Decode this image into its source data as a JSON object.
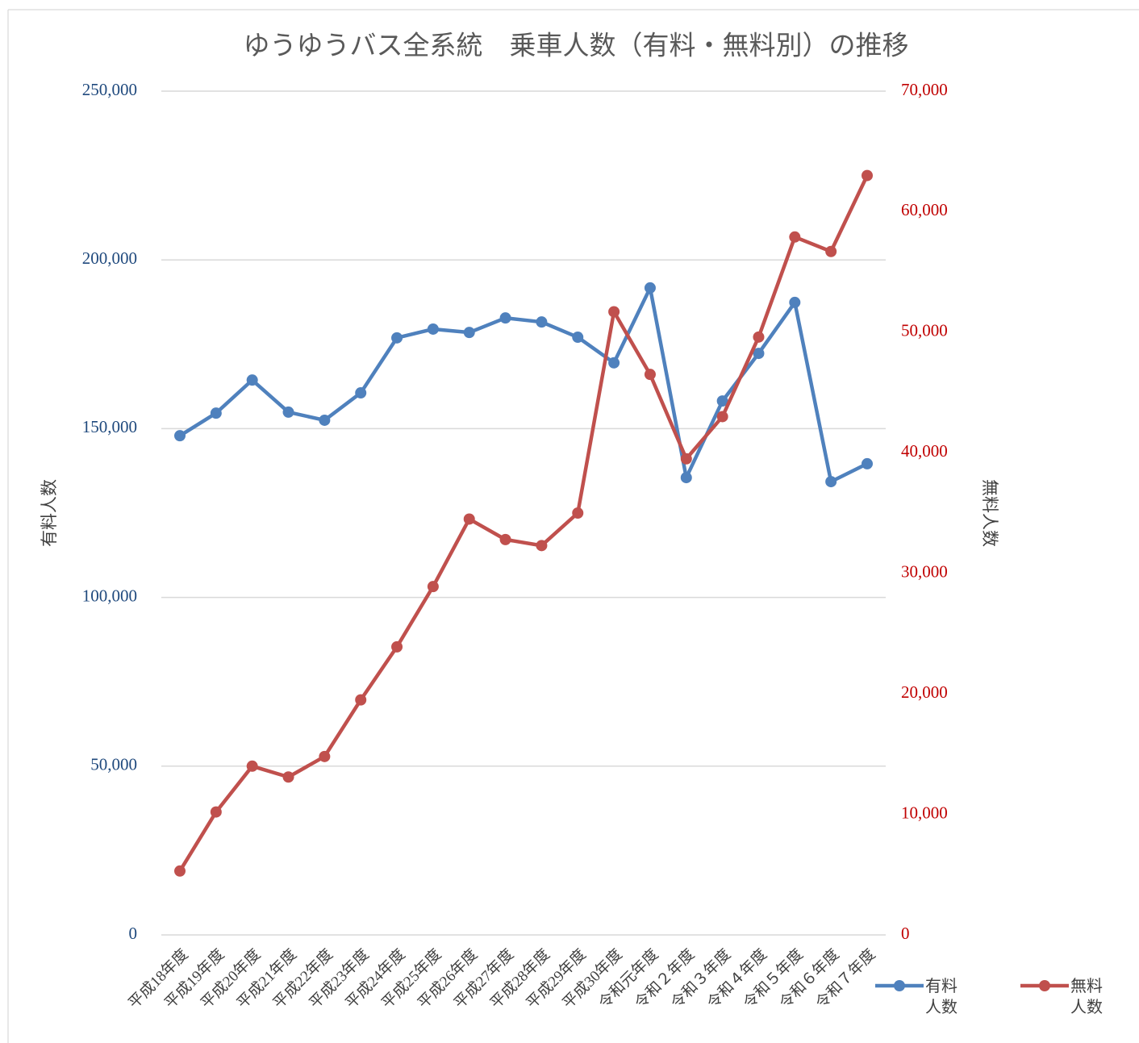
{
  "chart_data": {
    "type": "line",
    "title": "ゆうゆうバス全系統　乗車人数（有料・無料別）の推移",
    "categories": [
      "平成18年度",
      "平成19年度",
      "平成20年度",
      "平成21年度",
      "平成22年度",
      "平成23年度",
      "平成24年度",
      "平成25年度",
      "平成26年度",
      "平成27年度",
      "平成28年度",
      "平成29年度",
      "平成30年度",
      "令和元年度",
      "令和２年度",
      "令和３年度",
      "令和４年度",
      "令和５年度",
      "令和６年度",
      "令和７年度"
    ],
    "series": [
      {
        "name": "有料人数",
        "color": "#4f81bd",
        "axis": "y",
        "values": [
          147900,
          154600,
          164400,
          154900,
          152500,
          160600,
          176900,
          179500,
          178500,
          182800,
          181600,
          177100,
          169500,
          191700,
          135500,
          158200,
          172300,
          187400,
          134300,
          139600
        ]
      },
      {
        "name": "無料人数",
        "color": "#c0504d",
        "axis": "y2",
        "values": [
          5300,
          10200,
          14000,
          13100,
          14800,
          19500,
          23900,
          28900,
          34500,
          32800,
          32300,
          35000,
          51700,
          46500,
          39500,
          43000,
          49600,
          57900,
          56700,
          63000
        ]
      }
    ],
    "ylabel": "有料人数",
    "y2label": "無料人数",
    "ylim": [
      0,
      250000
    ],
    "yticks": [
      0,
      {
        "value": 50000,
        "label": "50,000"
      },
      {
        "value": 100000,
        "label": "100,000"
      },
      {
        "value": 150000,
        "label": "150,000"
      },
      {
        "value": 200000,
        "label": "200,000"
      },
      {
        "value": 250000,
        "label": "250,000"
      }
    ],
    "y2lim": [
      0,
      70000
    ],
    "y2ticks": [
      0,
      {
        "value": 10000,
        "label": "10,000"
      },
      {
        "value": 20000,
        "label": "20,000"
      },
      {
        "value": 30000,
        "label": "30,000"
      },
      {
        "value": 40000,
        "label": "40,000"
      },
      {
        "value": 50000,
        "label": "50,000"
      },
      {
        "value": 60000,
        "label": "60,000"
      },
      {
        "value": 70000,
        "label": "70,000"
      }
    ],
    "grid": true,
    "legend": "bottom-right"
  }
}
